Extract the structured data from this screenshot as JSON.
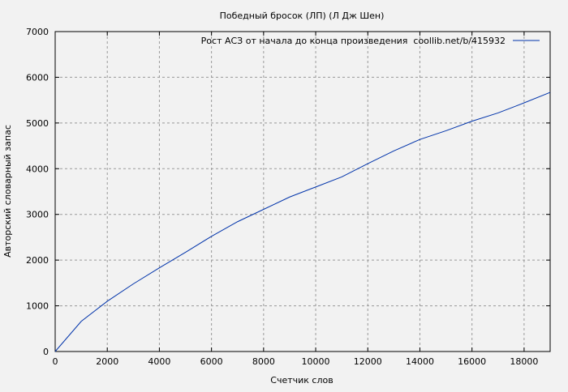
{
  "chart_data": {
    "type": "line",
    "title": "Победный бросок (ЛП) (Л Дж Шен)",
    "xlabel": "Счетчик слов",
    "ylabel": "Авторский словарный запас",
    "xlim": [
      0,
      19000
    ],
    "ylim": [
      0,
      7000
    ],
    "xticks": [
      0,
      2000,
      4000,
      6000,
      8000,
      10000,
      12000,
      14000,
      16000,
      18000
    ],
    "yticks": [
      0,
      1000,
      2000,
      3000,
      4000,
      5000,
      6000,
      7000
    ],
    "grid": true,
    "legend_position": "top-right",
    "series": [
      {
        "name": "Рост АСЗ от начала до конца произведения  coollib.net/b/415932",
        "color": "#0033aa",
        "x": [
          0,
          1000,
          2000,
          3000,
          4000,
          5000,
          6000,
          7000,
          8000,
          9000,
          10000,
          11000,
          12000,
          13000,
          14000,
          15000,
          16000,
          17000,
          18000,
          19000
        ],
        "y": [
          0,
          660,
          1100,
          1480,
          1830,
          2170,
          2520,
          2840,
          3110,
          3380,
          3600,
          3820,
          4110,
          4390,
          4640,
          4830,
          5040,
          5220,
          5440,
          5670
        ]
      }
    ]
  }
}
